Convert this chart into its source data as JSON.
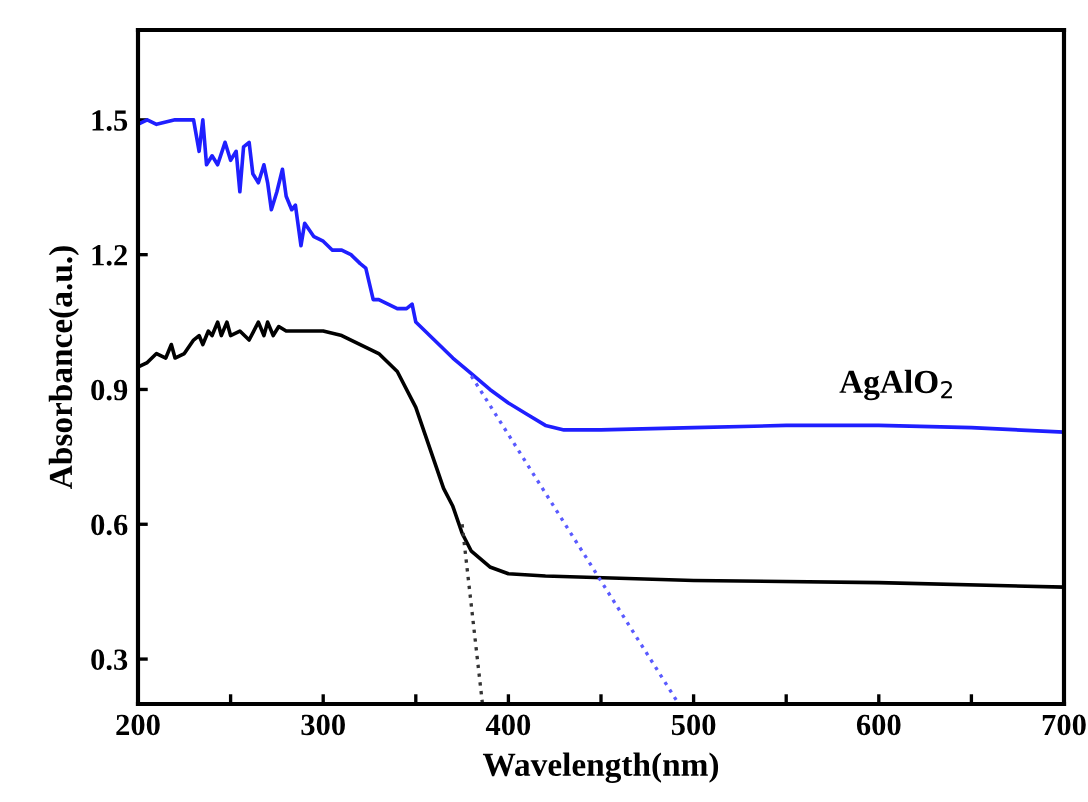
{
  "chart_data": {
    "type": "line",
    "xlabel": "Wavelength(nm)",
    "ylabel": "Absorbance(a.u.)",
    "xlim": [
      200,
      700
    ],
    "ylim": [
      0.2,
      1.7
    ],
    "xticks": [
      200,
      {
        "value": 250,
        "label": null
      },
      300,
      {
        "value": 350,
        "label": null
      },
      400,
      {
        "value": 450,
        "label": null
      },
      500,
      {
        "value": 550,
        "label": null
      },
      600,
      {
        "value": 650,
        "label": null
      },
      700
    ],
    "yticks": [
      0.3,
      0.6,
      0.9,
      1.2,
      1.5
    ],
    "grid": false,
    "marker": "none",
    "series": [
      {
        "name": "AgAlO$_{2}$",
        "color": "#1f1fff",
        "line_style": "solid",
        "x": [
          200,
          205,
          210,
          220,
          230,
          233,
          235,
          237,
          240,
          243,
          247,
          250,
          253,
          255,
          257,
          260,
          262,
          265,
          268,
          270,
          272,
          275,
          278,
          280,
          283,
          285,
          288,
          290,
          295,
          300,
          305,
          310,
          315,
          320,
          323,
          327,
          330,
          335,
          340,
          345,
          348,
          350,
          360,
          370,
          380,
          390,
          400,
          410,
          420,
          430,
          450,
          500,
          550,
          600,
          650,
          700
        ],
        "values": [
          1.49,
          1.5,
          1.49,
          1.5,
          1.5,
          1.43,
          1.5,
          1.4,
          1.42,
          1.4,
          1.45,
          1.41,
          1.43,
          1.34,
          1.44,
          1.45,
          1.38,
          1.36,
          1.4,
          1.36,
          1.3,
          1.34,
          1.39,
          1.33,
          1.3,
          1.31,
          1.22,
          1.27,
          1.24,
          1.23,
          1.21,
          1.21,
          1.2,
          1.18,
          1.17,
          1.1,
          1.1,
          1.09,
          1.08,
          1.08,
          1.09,
          1.05,
          1.01,
          0.97,
          0.935,
          0.9,
          0.87,
          0.845,
          0.82,
          0.81,
          0.81,
          0.815,
          0.82,
          0.82,
          0.815,
          0.805
        ]
      },
      {
        "color": "#000000",
        "line_style": "solid",
        "x": [
          200,
          205,
          210,
          215,
          218,
          220,
          225,
          230,
          233,
          235,
          238,
          240,
          243,
          245,
          248,
          250,
          255,
          260,
          265,
          268,
          270,
          273,
          276,
          280,
          290,
          300,
          310,
          320,
          330,
          340,
          350,
          355,
          360,
          365,
          370,
          375,
          380,
          390,
          400,
          420,
          500,
          600,
          700
        ],
        "values": [
          0.95,
          0.96,
          0.98,
          0.97,
          1.0,
          0.97,
          0.98,
          1.01,
          1.02,
          1.0,
          1.03,
          1.02,
          1.05,
          1.02,
          1.05,
          1.02,
          1.03,
          1.01,
          1.05,
          1.02,
          1.05,
          1.02,
          1.04,
          1.03,
          1.03,
          1.03,
          1.02,
          1.0,
          0.98,
          0.94,
          0.86,
          0.8,
          0.74,
          0.68,
          0.64,
          0.58,
          0.54,
          0.505,
          0.49,
          0.485,
          0.475,
          0.47,
          0.46
        ]
      },
      {
        "color": "#5a5aff",
        "line_style": "dotted",
        "x": [
          380,
          492
        ],
        "values": [
          0.93,
          0.2
        ]
      },
      {
        "color": "#333333",
        "line_style": "dotted",
        "x": [
          375,
          386
        ],
        "values": [
          0.6,
          0.2
        ]
      }
    ]
  }
}
